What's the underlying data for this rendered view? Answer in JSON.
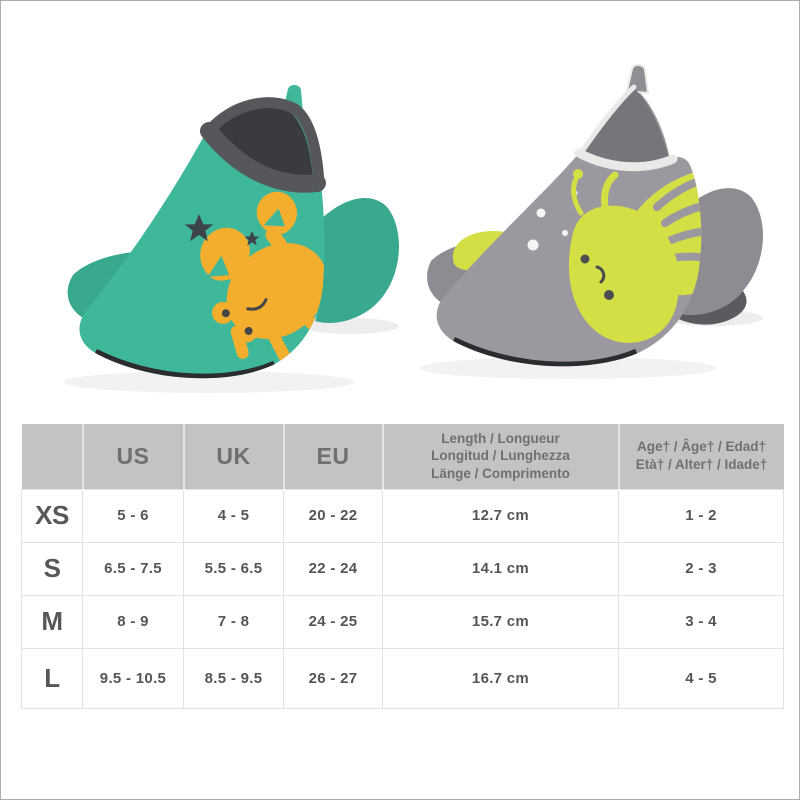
{
  "page": {
    "background": "#ffffff",
    "frame_border_color": "#adadad"
  },
  "hero": {
    "left_shoe": {
      "label": "teal water shoe with crab print",
      "colors": {
        "body": "#3EB79B",
        "body_shade": "#38A98E",
        "collar": "#56575B",
        "interior": "#3A3B3E",
        "sole": "#2B2C2F",
        "motif": "#F3AE2D",
        "star": "#3C434B",
        "face": "#45464A",
        "tab": "#3EB79B"
      }
    },
    "right_shoe": {
      "label": "grey water shoe with squid print",
      "colors": {
        "body": "#9C98A0",
        "body_shade": "#8F8B92",
        "trim": "#E9E9E7",
        "interior": "#77747B",
        "interior_shadow": "#5C5960",
        "sole": "#2B2C2F",
        "motif": "#D3DF45",
        "face": "#4C4D50",
        "bubble": "#FFFFFF",
        "tab": "#908D94"
      }
    }
  },
  "size_table": {
    "header_bg": "#C3C3C3",
    "header_text_color": "#6F7072",
    "body_text_color": "#545557",
    "columns": {
      "size": "",
      "us": "US",
      "uk": "UK",
      "eu": "EU",
      "length": "Length / Longueur\nLongitud / Lunghezza\nLänge / Comprimento",
      "age": "Age† / Âge† / Edad†\nEtà† / Alter† / Idade†"
    },
    "rows": [
      {
        "size": "XS",
        "us": "5 - 6",
        "uk": "4 - 5",
        "eu": "20 - 22",
        "length": "12.7 cm",
        "age": "1 - 2"
      },
      {
        "size": "S",
        "us": "6.5 - 7.5",
        "uk": "5.5 - 6.5",
        "eu": "22 - 24",
        "length": "14.1 cm",
        "age": "2 - 3"
      },
      {
        "size": "M",
        "us": "8 - 9",
        "uk": "7 - 8",
        "eu": "24 - 25",
        "length": "15.7 cm",
        "age": "3 - 4"
      },
      {
        "size": "L",
        "us": "9.5 - 10.5",
        "uk": "8.5 - 9.5",
        "eu": "26 - 27",
        "length": "16.7 cm",
        "age": "4 - 5"
      }
    ]
  },
  "chart_data": {
    "type": "table",
    "title": "Water shoe size chart",
    "columns": [
      "Size",
      "US",
      "UK",
      "EU",
      "Length / Longueur / Longitud / Lunghezza / Länge / Comprimento",
      "Age† / Âge† / Edad† / Età† / Alter† / Idade†"
    ],
    "rows": [
      [
        "XS",
        "5 - 6",
        "4 - 5",
        "20 - 22",
        "12.7 cm",
        "1 - 2"
      ],
      [
        "S",
        "6.5 - 7.5",
        "5.5 - 6.5",
        "22 - 24",
        "14.1 cm",
        "2 - 3"
      ],
      [
        "M",
        "8 - 9",
        "7 - 8",
        "24 - 25",
        "15.7 cm",
        "3 - 4"
      ],
      [
        "L",
        "9.5 - 10.5",
        "8.5 - 9.5",
        "26 - 27",
        "16.7 cm",
        "4 - 5"
      ]
    ]
  }
}
